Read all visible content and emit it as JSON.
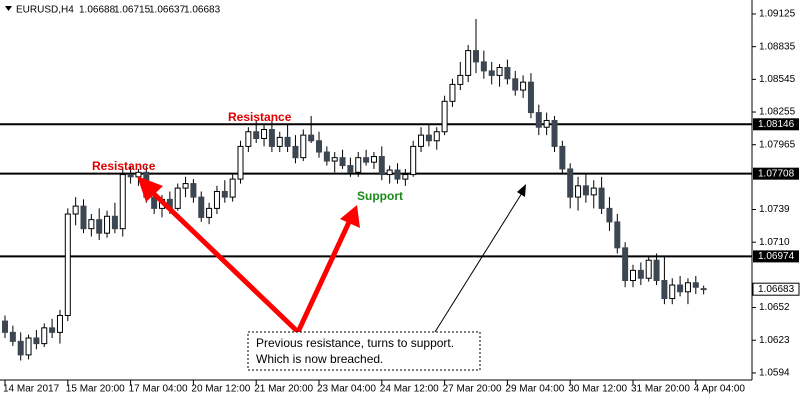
{
  "chart_data": {
    "type": "candlestick",
    "header": {
      "symbol": "EURUSD,H4",
      "ohlc": [
        1.06688,
        1.06715,
        1.06637,
        1.06683
      ]
    },
    "candles": [
      [
        1.064,
        1.0645,
        1.0625,
        1.063
      ],
      [
        1.063,
        1.0636,
        1.0618,
        1.0622
      ],
      [
        1.0622,
        1.063,
        1.0605,
        1.061
      ],
      [
        1.061,
        1.0628,
        1.0606,
        1.0625
      ],
      [
        1.0625,
        1.0632,
        1.0615,
        1.062
      ],
      [
        1.062,
        1.0638,
        1.0617,
        1.0634
      ],
      [
        1.0634,
        1.0642,
        1.0625,
        1.063
      ],
      [
        1.063,
        1.065,
        1.062,
        1.0645
      ],
      [
        1.0645,
        1.074,
        1.064,
        1.0735
      ],
      [
        1.0735,
        1.075,
        1.0725,
        1.0742
      ],
      [
        1.0742,
        1.0748,
        1.0718,
        1.0722
      ],
      [
        1.0722,
        1.0735,
        1.0715,
        1.073
      ],
      [
        1.073,
        1.074,
        1.0712,
        1.0718
      ],
      [
        1.0718,
        1.0738,
        1.0714,
        1.0733
      ],
      [
        1.0733,
        1.0745,
        1.0718,
        1.0722
      ],
      [
        1.0722,
        1.0775,
        1.0715,
        1.077
      ],
      [
        1.077,
        1.0778,
        1.0762,
        1.0768
      ],
      [
        1.0768,
        1.0775,
        1.076,
        1.0772
      ],
      [
        1.0772,
        1.0778,
        1.0745,
        1.075
      ],
      [
        1.075,
        1.076,
        1.0735,
        1.074
      ],
      [
        1.074,
        1.0752,
        1.0732,
        1.0748
      ],
      [
        1.0748,
        1.0755,
        1.0735,
        1.074
      ],
      [
        1.074,
        1.0762,
        1.0738,
        1.0758
      ],
      [
        1.0758,
        1.0768,
        1.075,
        1.0762
      ],
      [
        1.0762,
        1.0766,
        1.0745,
        1.075
      ],
      [
        1.075,
        1.0755,
        1.0728,
        1.0732
      ],
      [
        1.0732,
        1.0745,
        1.0726,
        1.074
      ],
      [
        1.074,
        1.076,
        1.0735,
        1.0755
      ],
      [
        1.0755,
        1.0765,
        1.0745,
        1.075
      ],
      [
        1.075,
        1.077,
        1.0746,
        1.0766
      ],
      [
        1.0766,
        1.08,
        1.0762,
        1.0795
      ],
      [
        1.0795,
        1.0812,
        1.079,
        1.0808
      ],
      [
        1.0808,
        1.0818,
        1.0798,
        1.0802
      ],
      [
        1.0802,
        1.0815,
        1.0795,
        1.081
      ],
      [
        1.081,
        1.0818,
        1.079,
        1.0795
      ],
      [
        1.0795,
        1.0808,
        1.079,
        1.0803
      ],
      [
        1.0803,
        1.0815,
        1.079,
        1.0795
      ],
      [
        1.0795,
        1.0805,
        1.078,
        1.0785
      ],
      [
        1.0785,
        1.081,
        1.0782,
        1.0805
      ],
      [
        1.0805,
        1.0822,
        1.0798,
        1.08
      ],
      [
        1.08,
        1.0808,
        1.0785,
        1.079
      ],
      [
        1.079,
        1.0795,
        1.0778,
        1.0782
      ],
      [
        1.0782,
        1.079,
        1.0772,
        1.0785
      ],
      [
        1.0785,
        1.0792,
        1.0775,
        1.0778
      ],
      [
        1.0778,
        1.0785,
        1.0768,
        1.0772
      ],
      [
        1.0772,
        1.079,
        1.0768,
        1.0785
      ],
      [
        1.0785,
        1.0792,
        1.0778,
        1.0781
      ],
      [
        1.0781,
        1.079,
        1.0775,
        1.0786
      ],
      [
        1.0786,
        1.0795,
        1.0765,
        1.077
      ],
      [
        1.077,
        1.0778,
        1.0762,
        1.0774
      ],
      [
        1.0774,
        1.078,
        1.0762,
        1.0766
      ],
      [
        1.0766,
        1.0775,
        1.076,
        1.077
      ],
      [
        1.077,
        1.08,
        1.0768,
        1.0795
      ],
      [
        1.0795,
        1.0812,
        1.079,
        1.0805
      ],
      [
        1.0805,
        1.0815,
        1.0795,
        1.08
      ],
      [
        1.08,
        1.0812,
        1.0792,
        1.0808
      ],
      [
        1.0808,
        1.084,
        1.0805,
        1.0835
      ],
      [
        1.0835,
        1.0855,
        1.083,
        1.085
      ],
      [
        1.085,
        1.087,
        1.0845,
        1.0858
      ],
      [
        1.0858,
        1.0885,
        1.0852,
        1.088
      ],
      [
        1.088,
        1.0908,
        1.086,
        1.087
      ],
      [
        1.087,
        1.088,
        1.0855,
        1.0862
      ],
      [
        1.0862,
        1.087,
        1.085,
        1.0858
      ],
      [
        1.0858,
        1.0868,
        1.0848,
        1.0865
      ],
      [
        1.0865,
        1.0872,
        1.085,
        1.0855
      ],
      [
        1.0855,
        1.0862,
        1.084,
        1.0845
      ],
      [
        1.0845,
        1.0858,
        1.0838,
        1.0852
      ],
      [
        1.0852,
        1.086,
        1.082,
        1.0825
      ],
      [
        1.0825,
        1.0832,
        1.0805,
        1.0812
      ],
      [
        1.0812,
        1.0825,
        1.0805,
        1.0818
      ],
      [
        1.0818,
        1.0822,
        1.079,
        1.0795
      ],
      [
        1.0795,
        1.08,
        1.077,
        1.0775
      ],
      [
        1.0775,
        1.078,
        1.074,
        1.075
      ],
      [
        1.075,
        1.0768,
        1.0738,
        1.076
      ],
      [
        1.076,
        1.077,
        1.0745,
        1.0752
      ],
      [
        1.0752,
        1.0765,
        1.074,
        1.0758
      ],
      [
        1.0758,
        1.0768,
        1.0735,
        1.074
      ],
      [
        1.074,
        1.075,
        1.072,
        1.0728
      ],
      [
        1.0728,
        1.0735,
        1.07,
        1.0705
      ],
      [
        1.0705,
        1.071,
        1.067,
        1.0676
      ],
      [
        1.0676,
        1.069,
        1.067,
        1.0685
      ],
      [
        1.0685,
        1.0692,
        1.0672,
        1.0678
      ],
      [
        1.0678,
        1.0698,
        1.0675,
        1.0694
      ],
      [
        1.0694,
        1.07,
        1.0672,
        1.0676
      ],
      [
        1.0676,
        1.0698,
        1.0655,
        1.066
      ],
      [
        1.066,
        1.0678,
        1.0655,
        1.0672
      ],
      [
        1.0672,
        1.068,
        1.0662,
        1.0666
      ],
      [
        1.0666,
        1.0678,
        1.0655,
        1.0674
      ],
      [
        1.0674,
        1.068,
        1.0664,
        1.067
      ],
      [
        1.06688,
        1.06715,
        1.06637,
        1.06683
      ]
    ],
    "colors": {
      "up": "#ffffff",
      "down": "#3d4752",
      "outline": "#000000"
    },
    "ylim": [
      1.05895,
      1.09249
    ],
    "yticks": [
      1.09125,
      1.08835,
      1.08545,
      1.08255,
      1.07965,
      1.0739,
      {
        "value": 1.071,
        "label": "1.0710"
      },
      1.0652,
      1.0623,
      1.0594
    ],
    "xticks": [
      {
        "value": 0,
        "label": "14 Mar 2017"
      },
      {
        "value": 8,
        "label": "15 Mar 20:00"
      },
      {
        "value": 16,
        "label": "17 Mar 04:00"
      },
      {
        "value": 24,
        "label": "20 Mar 12:00"
      },
      {
        "value": 32,
        "label": "21 Mar 20:00"
      },
      {
        "value": 40,
        "label": "23 Mar 04:00"
      },
      {
        "value": 48,
        "label": "24 Mar 12:00"
      },
      {
        "value": 56,
        "label": "27 Mar 20:00"
      },
      {
        "value": 64,
        "label": "29 Mar 04:00"
      },
      {
        "value": 72,
        "label": "30 Mar 12:00"
      },
      {
        "value": 80,
        "label": "31 Mar 20:00"
      },
      {
        "value": 88,
        "label": "4 Apr 04:00"
      }
    ],
    "levels": [
      1.08146,
      1.07708,
      1.06974
    ],
    "current_price": 1.06683,
    "annotations": {
      "resistance_1": "Resistance",
      "resistance_2": "Resistance",
      "support": "Support",
      "note": [
        "Previous resistance, turns to support.",
        "Which is now breached."
      ]
    }
  }
}
